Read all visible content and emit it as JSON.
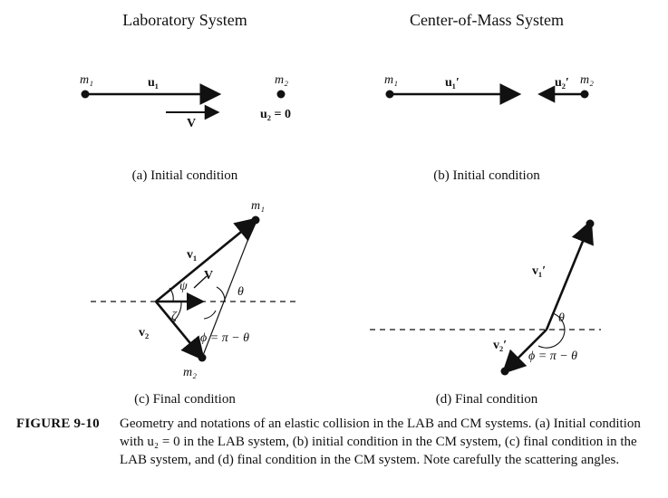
{
  "titles": {
    "left": "Laboratory System",
    "right": "Center-of-Mass System"
  },
  "labels": {
    "m1": "m₁",
    "m2": "m₂",
    "u1": "u₁",
    "V": "V",
    "u2_eq_0": "u₂ = 0",
    "u1_prime": "u₁′",
    "u2_prime": "u₂′",
    "v1": "v₁",
    "v2": "v₂",
    "psi": "ψ",
    "zeta": "ζ",
    "theta": "θ",
    "phi_relation": "ϕ = π − θ",
    "v1_prime": "v₁′",
    "v2_prime": "v₂′"
  },
  "subcaptions": {
    "a": "(a) Initial condition",
    "b": "(b) Initial condition",
    "c": "(c) Final condition",
    "d": "(d) Final condition"
  },
  "caption": {
    "label": "FIGURE 9-10",
    "text": "Geometry and notations of an elastic collision in the LAB and CM systems. (a) Initial condition with u₂ = 0 in the LAB system, (b) initial condition in the CM system, (c) final condition in the LAB system, and (d) final condition in the CM system. Note carefully the scattering angles."
  }
}
